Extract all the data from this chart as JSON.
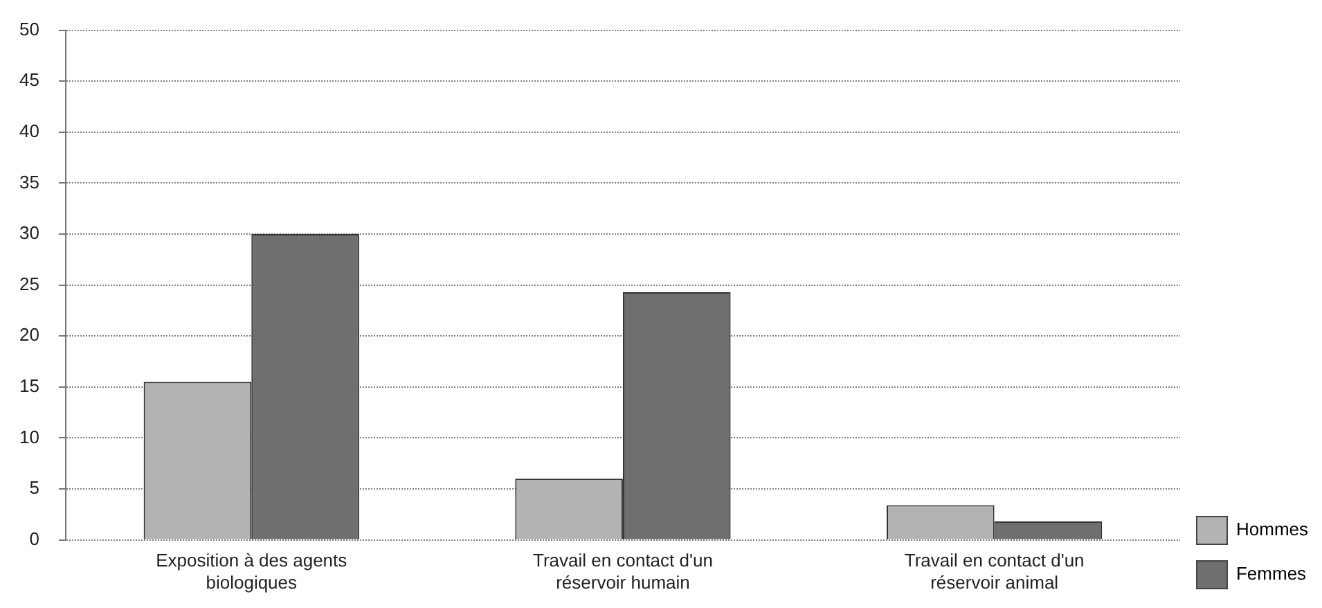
{
  "chart_data": {
    "type": "bar",
    "categories": [
      "Exposition à des agents biologiques",
      "Travail en contact d'un réservoir humain",
      "Travail en contact d'un réservoir animal"
    ],
    "series": [
      {
        "name": "Hommes",
        "color": "#b2b3b4",
        "values": [
          15.5,
          6,
          3.4
        ]
      },
      {
        "name": "Femmes",
        "color": "#6e6f71",
        "values": [
          30,
          24.3,
          1.8
        ]
      }
    ],
    "ylim": [
      0,
      50
    ],
    "yticks": [
      0,
      5,
      10,
      15,
      20,
      25,
      30,
      35,
      40,
      45,
      50
    ],
    "grid": "y",
    "legend": "bottom right"
  }
}
